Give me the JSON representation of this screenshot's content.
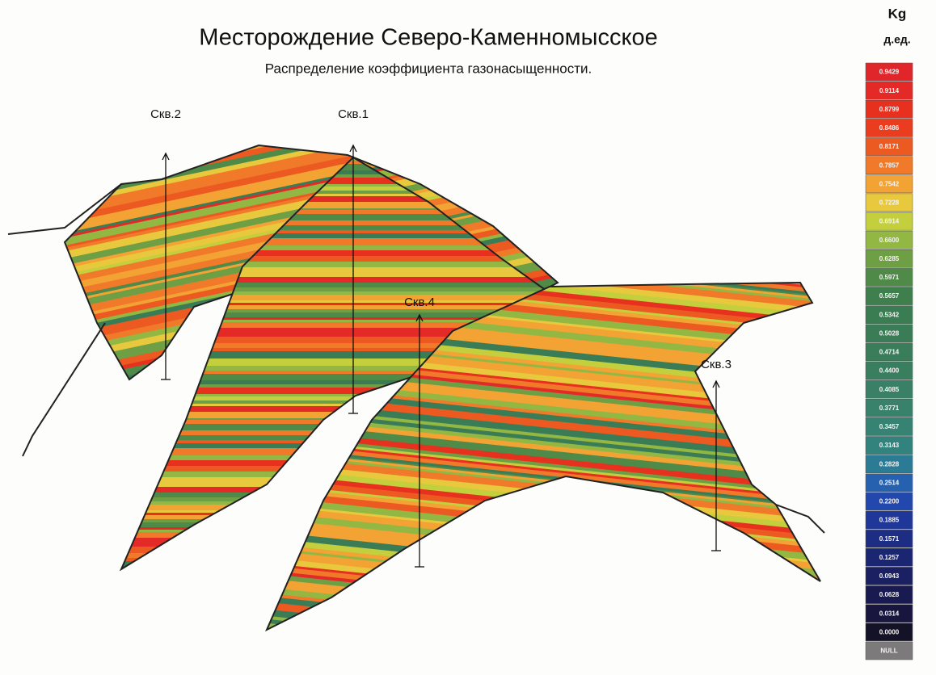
{
  "header": {
    "title": "Месторождение Северо-Каменномысское",
    "subtitle": "Распределение коэффициента газонасыщенности."
  },
  "wells": [
    {
      "label": "Скв.2"
    },
    {
      "label": "Скв.1"
    },
    {
      "label": "Скв.4"
    },
    {
      "label": "Скв.3"
    }
  ],
  "legend": {
    "title": "Kg",
    "unit": "д.ед.",
    "items": [
      {
        "label": "0.9429",
        "color": "#e0262a"
      },
      {
        "label": "0.9114",
        "color": "#e42a26"
      },
      {
        "label": "0.8799",
        "color": "#e8301f"
      },
      {
        "label": "0.8486",
        "color": "#ea3d1f"
      },
      {
        "label": "0.8171",
        "color": "#ec5a22"
      },
      {
        "label": "0.7857",
        "color": "#f07a2a"
      },
      {
        "label": "0.7542",
        "color": "#f3a234"
      },
      {
        "label": "0.7228",
        "color": "#e8c83c"
      },
      {
        "label": "0.6914",
        "color": "#c4cf3e"
      },
      {
        "label": "0.6600",
        "color": "#93b743"
      },
      {
        "label": "0.6285",
        "color": "#6f9f45"
      },
      {
        "label": "0.5971",
        "color": "#4f8a48"
      },
      {
        "label": "0.5657",
        "color": "#3f7f4d"
      },
      {
        "label": "0.5342",
        "color": "#3b7d52"
      },
      {
        "label": "0.5028",
        "color": "#3a7c56"
      },
      {
        "label": "0.4714",
        "color": "#3a7d5b"
      },
      {
        "label": "0.4400",
        "color": "#3a7e60"
      },
      {
        "label": "0.4085",
        "color": "#398066"
      },
      {
        "label": "0.3771",
        "color": "#38826c"
      },
      {
        "label": "0.3457",
        "color": "#368373"
      },
      {
        "label": "0.3143",
        "color": "#32837d"
      },
      {
        "label": "0.2828",
        "color": "#2c7b95"
      },
      {
        "label": "0.2514",
        "color": "#2661b0"
      },
      {
        "label": "0.2200",
        "color": "#2348ad"
      },
      {
        "label": "0.1885",
        "color": "#1f3799"
      },
      {
        "label": "0.1571",
        "color": "#1d2d84"
      },
      {
        "label": "0.1257",
        "color": "#1b2672"
      },
      {
        "label": "0.0943",
        "color": "#1a2061"
      },
      {
        "label": "0.0628",
        "color": "#191a4f"
      },
      {
        "label": "0.0314",
        "color": "#18163e"
      },
      {
        "label": "0.0000",
        "color": "#141226"
      },
      {
        "label": "NULL",
        "color": "#7d7a7c"
      }
    ]
  }
}
